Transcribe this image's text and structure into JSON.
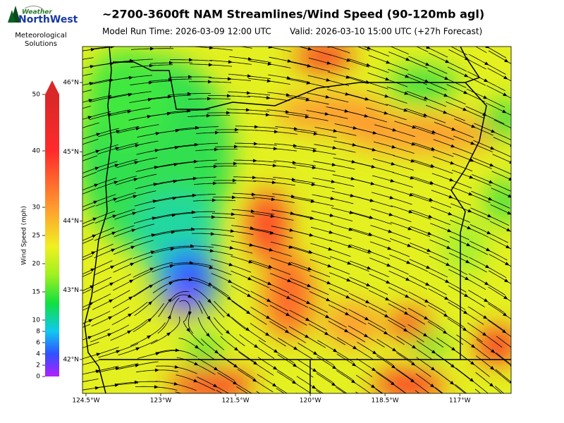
{
  "header": {
    "title": "~2700-3600ft NAM Streamlines/Wind Speed (90-120mb agl)",
    "model_run": "Model Run Time: 2026-03-09 12:00 UTC",
    "valid": "Valid: 2026-03-10 15:00 UTC  (+27h Forecast)"
  },
  "logo": {
    "line1": "Weather",
    "line2": "NorthWest",
    "caption": "Meteorological Solutions"
  },
  "colorbar": {
    "label": "Wind Speed (mph)",
    "lim": [
      0,
      50
    ],
    "ticks": [
      0,
      2,
      4,
      6,
      8,
      10,
      15,
      20,
      25,
      30,
      40,
      50
    ]
  },
  "map": {
    "lonlim": [
      -124.57,
      -115.97
    ],
    "latlim": [
      41.51,
      46.52
    ],
    "lon_ticks": [
      {
        "value": -124.5,
        "label": "124.5°W"
      },
      {
        "value": -123,
        "label": "123°W"
      },
      {
        "value": -121.5,
        "label": "121.5°W"
      },
      {
        "value": -120,
        "label": "120°W"
      },
      {
        "value": -118.5,
        "label": "118.5°W"
      },
      {
        "value": -117,
        "label": "117°W"
      }
    ],
    "lat_ticks": [
      {
        "value": 46,
        "label": "46°N"
      },
      {
        "value": 45,
        "label": "45°N"
      },
      {
        "value": 44,
        "label": "44°N"
      },
      {
        "value": 43,
        "label": "43°N"
      },
      {
        "value": 42,
        "label": "42°N"
      }
    ]
  }
}
